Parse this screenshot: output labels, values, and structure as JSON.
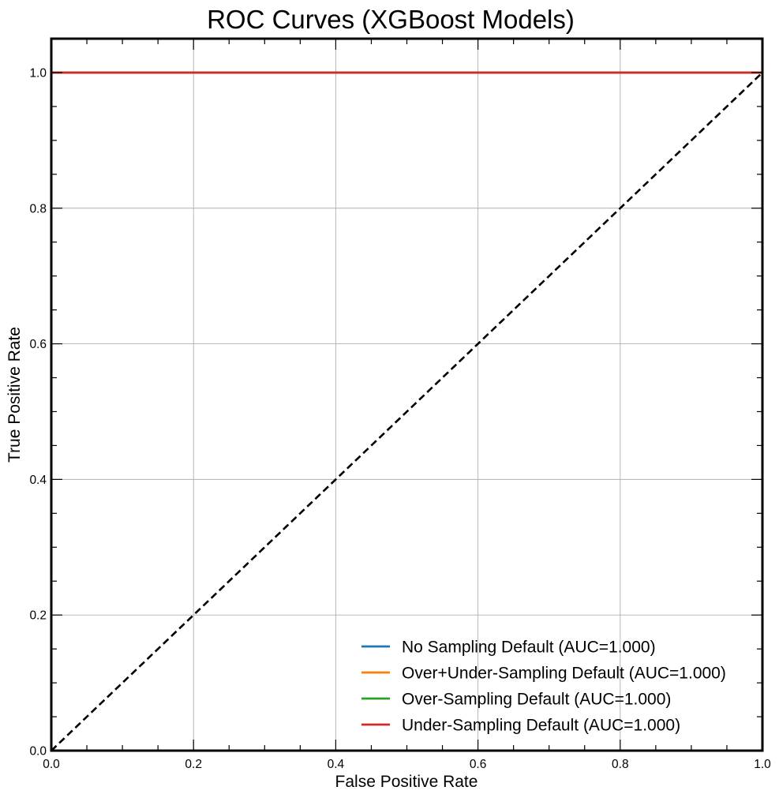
{
  "chart_data": {
    "type": "line",
    "title": "ROC Curves (XGBoost Models)",
    "xlabel": "False Positive Rate",
    "ylabel": "True Positive Rate",
    "xlim": [
      0.0,
      1.0
    ],
    "ylim": [
      0.0,
      1.05
    ],
    "x_ticks": [
      0.0,
      0.2,
      0.4,
      0.6,
      0.8,
      1.0
    ],
    "y_ticks": [
      0.0,
      0.2,
      0.4,
      0.6,
      0.8,
      1.0
    ],
    "x_tick_labels": [
      "0.0",
      "0.2",
      "0.4",
      "0.6",
      "0.8",
      "1.0"
    ],
    "y_tick_labels": [
      "0.0",
      "0.2",
      "0.4",
      "0.6",
      "0.8",
      "1.0"
    ],
    "grid": true,
    "legend_position": "lower-right",
    "series": [
      {
        "name": "No Sampling Default (AUC=1.000)",
        "color": "#1f77b4",
        "x": [
          0.0,
          0.0,
          1.0
        ],
        "y": [
          0.0,
          1.0,
          1.0
        ]
      },
      {
        "name": "Over+Under-Sampling Default (AUC=1.000)",
        "color": "#ff7f0e",
        "x": [
          0.0,
          0.0,
          1.0
        ],
        "y": [
          0.0,
          1.0,
          1.0
        ]
      },
      {
        "name": "Over-Sampling Default (AUC=1.000)",
        "color": "#2ca02c",
        "x": [
          0.0,
          0.0,
          1.0
        ],
        "y": [
          0.0,
          1.0,
          1.0
        ]
      },
      {
        "name": "Under-Sampling Default (AUC=1.000)",
        "color": "#d62728",
        "x": [
          0.0,
          0.0,
          1.0
        ],
        "y": [
          0.0,
          1.0,
          1.0
        ]
      }
    ],
    "reference_line": {
      "x": [
        0.0,
        1.0
      ],
      "y": [
        0.0,
        1.0
      ],
      "color": "#000000",
      "style": "dashed"
    }
  }
}
